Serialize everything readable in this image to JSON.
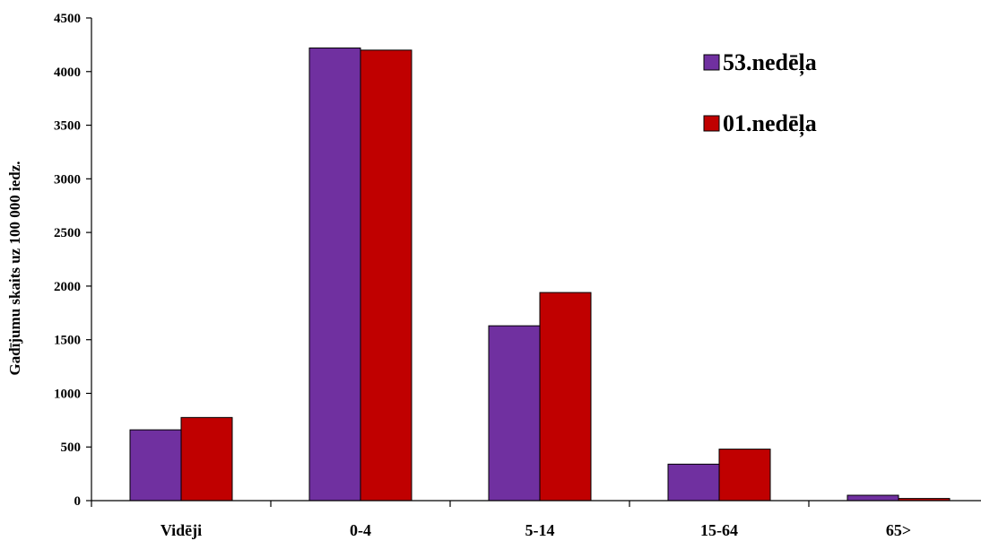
{
  "chart_data": {
    "type": "bar",
    "categories": [
      "Vidēji",
      "0-4",
      "5-14",
      "15-64",
      "65>"
    ],
    "series": [
      {
        "name": "53.nedēļa",
        "color": "#7030A0",
        "values": [
          660,
          4220,
          1630,
          340,
          50
        ]
      },
      {
        "name": "01.nedēļa",
        "color": "#C00000",
        "values": [
          775,
          4200,
          1940,
          480,
          20
        ]
      }
    ],
    "ylabel": "Gadījumu skaits uz 100 000 iedz.",
    "ylim": [
      0,
      4500
    ],
    "yticks": [
      0,
      500,
      1000,
      1500,
      2000,
      2500,
      3000,
      3500,
      4000,
      4500
    ],
    "legend_position": "top-right",
    "grid": false
  }
}
